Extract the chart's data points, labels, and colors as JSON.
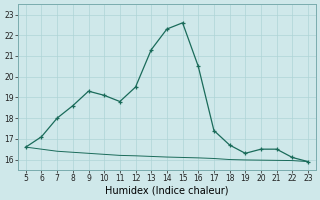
{
  "x": [
    5,
    6,
    7,
    8,
    9,
    10,
    11,
    12,
    13,
    14,
    15,
    16,
    17,
    18,
    19,
    20,
    21,
    22,
    23
  ],
  "y_main": [
    16.6,
    17.1,
    18.0,
    18.6,
    19.3,
    19.1,
    18.8,
    19.5,
    21.3,
    22.3,
    22.6,
    20.5,
    17.4,
    16.7,
    16.3,
    16.5,
    16.5,
    16.1,
    15.9
  ],
  "y_base": [
    16.6,
    16.5,
    16.4,
    16.35,
    16.3,
    16.25,
    16.2,
    16.18,
    16.15,
    16.12,
    16.1,
    16.08,
    16.05,
    16.0,
    15.98,
    15.97,
    15.96,
    15.95,
    15.9
  ],
  "line_color": "#1a6b5a",
  "bg_color": "#cfe8ea",
  "grid_color": "#aed4d6",
  "xlabel": "Humidex (Indice chaleur)",
  "xlim": [
    4.5,
    23.5
  ],
  "ylim": [
    15.5,
    23.5
  ],
  "yticks": [
    16,
    17,
    18,
    19,
    20,
    21,
    22,
    23
  ],
  "xticks": [
    5,
    6,
    7,
    8,
    9,
    10,
    11,
    12,
    13,
    14,
    15,
    16,
    17,
    18,
    19,
    20,
    21,
    22,
    23
  ]
}
